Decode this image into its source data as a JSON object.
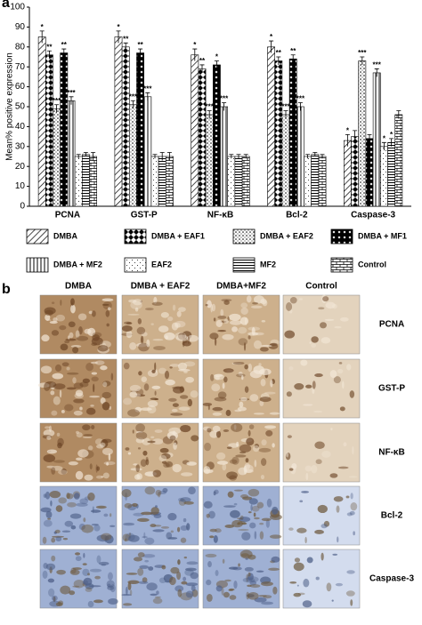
{
  "panel_labels": [
    "a",
    "b"
  ],
  "chart_data": {
    "type": "bar",
    "y_label": "Mean% positive expression",
    "categories": [
      "PCNA",
      "GST-P",
      "NF-κB",
      "Bcl-2",
      "Caspase-3"
    ],
    "ylim": [
      0,
      100
    ],
    "yticks": [
      0,
      10,
      20,
      30,
      40,
      50,
      60,
      70,
      80,
      90,
      100
    ],
    "series": [
      {
        "name": "DMBA",
        "values": [
          85,
          85,
          76,
          80,
          33
        ],
        "errors": [
          3,
          3,
          3,
          3,
          3
        ],
        "annotations": [
          "*",
          "*",
          "*",
          "*",
          "*"
        ]
      },
      {
        "name": "DMBA + EAF1",
        "values": [
          76,
          80,
          69,
          73,
          35
        ],
        "errors": [
          2,
          2,
          2,
          2,
          3
        ],
        "annotations": [
          "**",
          "**",
          "**",
          "**",
          null
        ]
      },
      {
        "name": "DMBA + EAF2",
        "values": [
          49,
          51,
          46,
          46,
          73
        ],
        "errors": [
          2,
          2,
          2,
          2,
          2
        ],
        "annotations": [
          "***",
          "***",
          "***",
          "***",
          "***"
        ]
      },
      {
        "name": "DMBA + MF1",
        "values": [
          77,
          77,
          71,
          74,
          34
        ],
        "errors": [
          2,
          2,
          2,
          2,
          2
        ],
        "annotations": [
          "**",
          "**",
          "*",
          "**",
          null
        ]
      },
      {
        "name": "DMBA + MF2",
        "values": [
          53,
          55,
          50,
          50,
          67
        ],
        "errors": [
          2,
          2,
          2,
          2,
          2
        ],
        "annotations": [
          "***",
          "***",
          "***",
          "***",
          "***"
        ]
      },
      {
        "name": "EAF2",
        "values": [
          25,
          25,
          25,
          25,
          30
        ],
        "errors": [
          1,
          1,
          1,
          1,
          2
        ],
        "annotations": [
          null,
          null,
          null,
          null,
          "*"
        ]
      },
      {
        "name": "MF2",
        "values": [
          26,
          25,
          25,
          26,
          32
        ],
        "errors": [
          1,
          2,
          1,
          1,
          2
        ],
        "annotations": [
          null,
          null,
          null,
          null,
          "*"
        ]
      },
      {
        "name": "Control",
        "values": [
          25,
          25,
          25,
          25,
          46
        ],
        "errors": [
          2,
          2,
          1,
          1,
          2
        ],
        "annotations": [
          null,
          null,
          null,
          null,
          null
        ]
      }
    ]
  },
  "micrographs": {
    "columns": [
      "DMBA",
      "DMBA + EAF2",
      "DMBA+MF2",
      "Control"
    ],
    "rows": [
      "PCNA",
      "GST-P",
      "NF-κB",
      "Bcl-2",
      "Caspase-3"
    ]
  }
}
